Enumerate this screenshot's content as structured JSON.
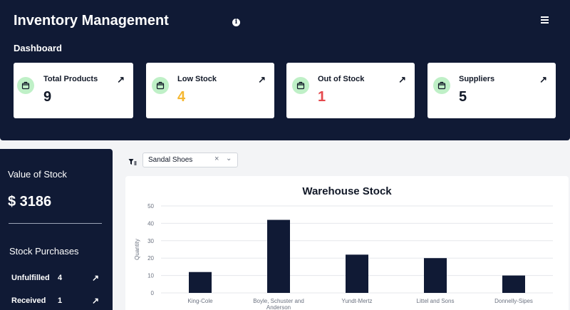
{
  "header": {
    "title": "Inventory Management",
    "section": "Dashboard"
  },
  "cards": [
    {
      "label": "Total Products",
      "value": "9",
      "color": "#111827"
    },
    {
      "label": "Low Stock",
      "value": "4",
      "color": "#f5b731"
    },
    {
      "label": "Out of Stock",
      "value": "1",
      "color": "#e5484d"
    },
    {
      "label": "Suppliers",
      "value": "5",
      "color": "#111827"
    }
  ],
  "sidebar": {
    "value_label": "Value of Stock",
    "value": "$ 3186",
    "purchases_label": "Stock Purchases",
    "rows": [
      {
        "label": "Unfulfilled",
        "count": "4"
      },
      {
        "label": "Received",
        "count": "1"
      }
    ]
  },
  "filter": {
    "selected": "Sandal Shoes"
  },
  "chart_data": {
    "type": "bar",
    "title": "Warehouse Stock",
    "ylabel": "Quantity",
    "xlabel": "",
    "categories": [
      "King-Cole",
      "Boyle, Schuster and Anderson",
      "Yundt-Mertz",
      "Littel and Sons",
      "Donnelly-Sipes"
    ],
    "category_lines": [
      [
        "King-Cole"
      ],
      [
        "Boyle, Schuster and",
        "Anderson"
      ],
      [
        "Yundt-Mertz"
      ],
      [
        "Littel and Sons"
      ],
      [
        "Donnelly-Sipes"
      ]
    ],
    "values": [
      12,
      42,
      22,
      20,
      10
    ],
    "ylim": [
      0,
      50
    ],
    "yticks": [
      0,
      10,
      20,
      30,
      40,
      50
    ],
    "grid": true,
    "bar_color": "#101a35"
  }
}
